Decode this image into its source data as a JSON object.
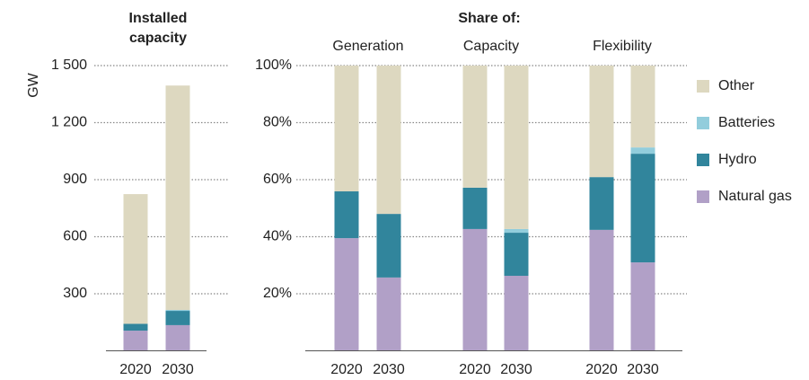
{
  "chart_data": [
    {
      "type": "stacked_bar",
      "title": "Installed capacity",
      "y_label": "GW",
      "categories": [
        "2020",
        "2030"
      ],
      "series": [
        {
          "name": "Natural gas",
          "color": "#b1a0c7",
          "values": [
            106,
            135
          ]
        },
        {
          "name": "Hydro",
          "color": "#31859c",
          "values": [
            36,
            75
          ]
        },
        {
          "name": "Batteries",
          "color": "#92cddc",
          "values": [
            0,
            5
          ]
        },
        {
          "name": "Other",
          "color": "#ddd8c0",
          "values": [
            682,
            1180
          ]
        }
      ],
      "ylim": [
        0,
        1500
      ],
      "yticks": [
        300,
        600,
        900,
        {
          "value": 1200,
          "label": "1 200"
        },
        {
          "value": 1500,
          "label": "1 500"
        }
      ],
      "grid": true
    },
    {
      "type": "stacked_bar",
      "title": "Share of:",
      "groups": [
        "Generation",
        "Capacity",
        "Flexibility"
      ],
      "categories": [
        "2020",
        "2030",
        "2020",
        "2030",
        "2020",
        "2030"
      ],
      "series": [
        {
          "name": "Natural gas",
          "color": "#b1a0c7",
          "values": [
            39.5,
            25.7,
            42.7,
            26.3,
            42.4,
            31.0
          ]
        },
        {
          "name": "Hydro",
          "color": "#31859c",
          "values": [
            16.4,
            22.3,
            14.5,
            15.1,
            18.5,
            38.1
          ]
        },
        {
          "name": "Batteries",
          "color": "#92cddc",
          "values": [
            0,
            0,
            0,
            1.3,
            0,
            2.2
          ]
        },
        {
          "name": "Other",
          "color": "#ddd8c0",
          "values": [
            44.1,
            52.0,
            42.8,
            57.3,
            39.1,
            28.7
          ]
        }
      ],
      "ylim": [
        0,
        100
      ],
      "yticks": [
        {
          "value": 20,
          "label": "20%"
        },
        {
          "value": 40,
          "label": "40%"
        },
        {
          "value": 60,
          "label": "60%"
        },
        {
          "value": 80,
          "label": "80%"
        },
        {
          "value": 100,
          "label": "100%"
        }
      ],
      "grid": true,
      "legend": "right"
    }
  ]
}
